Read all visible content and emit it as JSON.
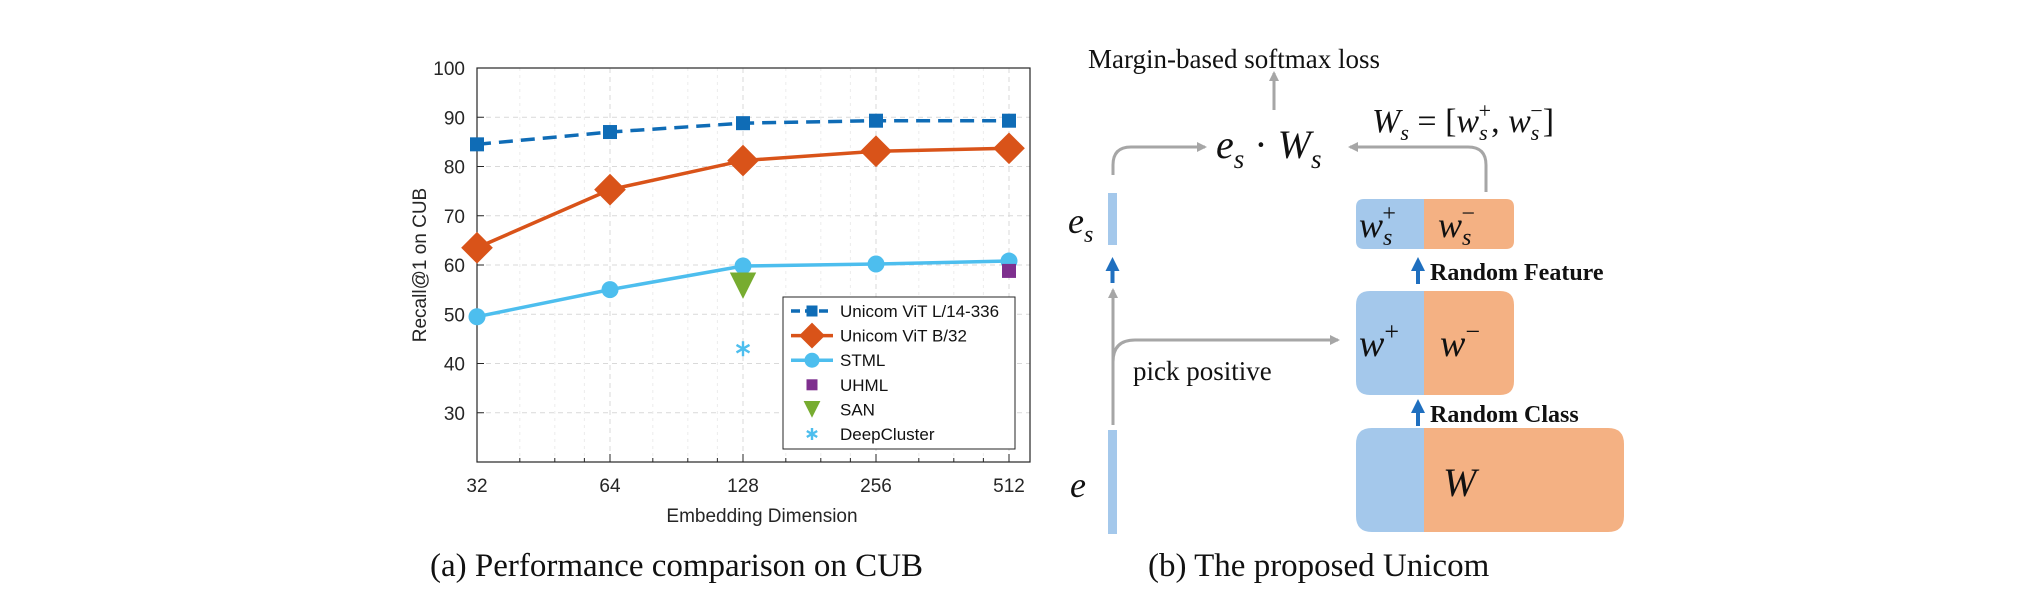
{
  "figure_a": {
    "caption_tag": "(a)",
    "caption": "Performance comparison on CUB",
    "chart_data": {
      "type": "line",
      "xlabel": "Embedding Dimension",
      "ylabel": "Recall@1 on CUB",
      "x_scale": "log2",
      "x_ticks": [
        "32",
        "64",
        "128",
        "256",
        "512"
      ],
      "y_ticks": [
        "30",
        "40",
        "50",
        "60",
        "70",
        "80",
        "90",
        "100"
      ],
      "ylim": [
        20,
        100
      ],
      "grid": true,
      "legend_position": "lower-right",
      "series": [
        {
          "name": "Unicom ViT L/14-336",
          "color": "#0f6cb6",
          "marker": "square",
          "line": "dashed",
          "x": [
            32,
            64,
            128,
            256,
            512
          ],
          "y": [
            84.5,
            87.0,
            88.8,
            89.3,
            89.3
          ]
        },
        {
          "name": "Unicom ViT B/32",
          "color": "#d95319",
          "marker": "diamond",
          "line": "solid",
          "x": [
            32,
            64,
            128,
            256,
            512
          ],
          "y": [
            63.5,
            75.3,
            81.2,
            83.1,
            83.7
          ]
        },
        {
          "name": "STML",
          "color": "#4dbeee",
          "marker": "circle",
          "line": "solid",
          "x": [
            32,
            64,
            128,
            256,
            512
          ],
          "y": [
            49.5,
            55.0,
            59.8,
            60.2,
            60.8
          ]
        },
        {
          "name": "UHML",
          "color": "#7e2f8e",
          "marker": "square",
          "line": "none",
          "x": [
            512
          ],
          "y": [
            58.8
          ]
        },
        {
          "name": "SAN",
          "color": "#77ac30",
          "marker": "triangle-down",
          "line": "none",
          "x": [
            128
          ],
          "y": [
            55.8
          ]
        },
        {
          "name": "DeepCluster",
          "color": "#4dbeee",
          "marker": "asterisk",
          "line": "none",
          "x": [
            128
          ],
          "y": [
            43.0
          ]
        }
      ]
    }
  },
  "figure_b": {
    "caption_tag": "(b)",
    "caption": "The proposed Unicom",
    "loss_label": "Margin-based softmax loss",
    "step_random_feature": "Random Feature",
    "step_random_class": "Random Class",
    "pick_positive": "pick positive",
    "colors": {
      "positive": "#a4c8eb",
      "negative": "#f4b183",
      "arrow_blue": "#1f6fbf",
      "arrow_grey": "#a6a6a6"
    }
  }
}
